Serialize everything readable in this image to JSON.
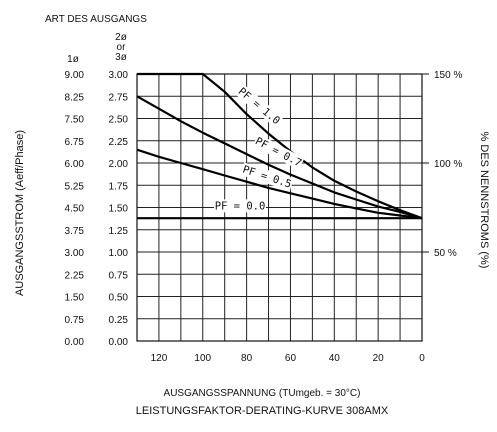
{
  "chart_data": {
    "type": "line",
    "header": "ART DES AUSGANGS",
    "header_sub": [
      "2ø",
      "or",
      "3ø"
    ],
    "col1_head": "1ø",
    "title": "LEISTUNGSFAKTOR-DERATING-KURVE 308AMX",
    "xlabel": "AUSGANGSSPANNUNG (TUmgeb. = 30°C)",
    "ylabel_left": "AUSGANGSSTROM (Aeff/Phase)",
    "ylabel_right": "% DES NENNSTROMS (%)",
    "xlim": [
      130,
      0
    ],
    "ylim": [
      0,
      3.0
    ],
    "x_ticks": [
      120,
      100,
      80,
      60,
      40,
      20,
      0
    ],
    "x_tick_labels": [
      "120",
      "100",
      "80",
      "60",
      "40",
      "20",
      "0"
    ],
    "y_ticks": [
      0.0,
      0.25,
      0.5,
      0.75,
      1.0,
      1.25,
      1.5,
      1.75,
      2.0,
      2.25,
      2.5,
      2.75,
      3.0
    ],
    "y_tick_labels_1ph": [
      "0.00",
      "0.75",
      "1.50",
      "2.25",
      "3.00",
      "3.75",
      "4.50",
      "5.25",
      "6.00",
      "6.75",
      "7.50",
      "8.25",
      "9.00"
    ],
    "y_tick_labels_3ph": [
      "0.00",
      "0.25",
      "0.50",
      "0.75",
      "1.00",
      "1.25",
      "1.50",
      "1.75",
      "2.00",
      "2.25",
      "2.50",
      "2.75",
      "3.00"
    ],
    "right_ticks": [
      {
        "value": 1.0,
        "label": "50 %"
      },
      {
        "value": 2.0,
        "label": "100 %"
      },
      {
        "value": 3.0,
        "label": "150 %"
      }
    ],
    "grid": true,
    "series": [
      {
        "name": "PF = 1.0",
        "x": [
          130,
          100,
          90,
          80,
          70,
          60,
          50,
          40,
          30,
          20,
          10,
          0
        ],
        "y": [
          3.0,
          3.0,
          2.8,
          2.55,
          2.33,
          2.13,
          1.95,
          1.8,
          1.68,
          1.57,
          1.47,
          1.38
        ]
      },
      {
        "name": "PF = 0.7",
        "x": [
          130,
          120,
          110,
          100,
          90,
          80,
          70,
          60,
          50,
          40,
          30,
          20,
          10,
          0
        ],
        "y": [
          2.75,
          2.61,
          2.47,
          2.34,
          2.22,
          2.1,
          1.98,
          1.87,
          1.77,
          1.67,
          1.59,
          1.51,
          1.45,
          1.38
        ]
      },
      {
        "name": "PF = 0.5",
        "x": [
          130,
          120,
          110,
          100,
          90,
          80,
          70,
          60,
          50,
          40,
          30,
          20,
          10,
          0
        ],
        "y": [
          2.15,
          2.07,
          2.0,
          1.93,
          1.86,
          1.79,
          1.72,
          1.66,
          1.6,
          1.54,
          1.49,
          1.44,
          1.41,
          1.38
        ]
      },
      {
        "name": "PF = 0.0",
        "x": [
          130,
          0
        ],
        "y": [
          1.38,
          1.38
        ]
      }
    ]
  }
}
